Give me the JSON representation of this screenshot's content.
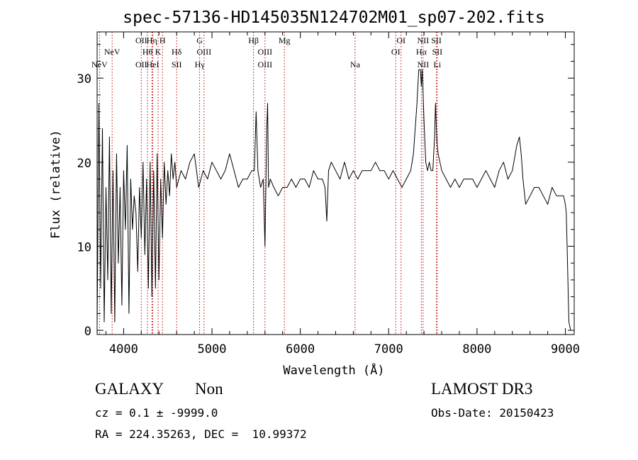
{
  "chart_data": {
    "type": "line",
    "title": "spec-57136-HD145035N124702M01_sp07-202.fits",
    "xlabel": "Wavelength (Å)",
    "ylabel": "Flux (relative)",
    "xlim": [
      3700,
      9100
    ],
    "ylim": [
      -0.5,
      35.5
    ],
    "xticks": [
      4000,
      5000,
      6000,
      7000,
      8000,
      9000
    ],
    "yticks": [
      0,
      10,
      20,
      30
    ],
    "line_color": "#000000",
    "marker_color": "#c00000",
    "series": [
      {
        "x": [
          3700,
          3720,
          3740,
          3760,
          3780,
          3800,
          3820,
          3840,
          3860,
          3880,
          3900,
          3920,
          3940,
          3960,
          3980,
          4000,
          4020,
          4040,
          4060,
          4080,
          4100,
          4120,
          4140,
          4160,
          4180,
          4200,
          4220,
          4240,
          4260,
          4280,
          4300,
          4320,
          4340,
          4360,
          4380,
          4400,
          4420,
          4440,
          4460,
          4480,
          4500,
          4520,
          4540,
          4560,
          4580,
          4600,
          4650,
          4700,
          4750,
          4800,
          4850,
          4900,
          4950,
          5000,
          5050,
          5100,
          5150,
          5200,
          5250,
          5300,
          5350,
          5400,
          5450,
          5480,
          5500,
          5520,
          5550,
          5580,
          5600,
          5620,
          5630,
          5640,
          5660,
          5700,
          5750,
          5800,
          5850,
          5900,
          5950,
          6000,
          6050,
          6100,
          6150,
          6200,
          6250,
          6280,
          6300,
          6320,
          6350,
          6400,
          6450,
          6500,
          6550,
          6600,
          6650,
          6700,
          6750,
          6800,
          6850,
          6900,
          6950,
          7000,
          7050,
          7100,
          7150,
          7200,
          7250,
          7280,
          7300,
          7320,
          7340,
          7360,
          7370,
          7380,
          7390,
          7400,
          7420,
          7440,
          7460,
          7480,
          7500,
          7510,
          7520,
          7530,
          7540,
          7550,
          7560,
          7580,
          7600,
          7650,
          7700,
          7750,
          7800,
          7850,
          7900,
          7950,
          8000,
          8050,
          8100,
          8150,
          8200,
          8250,
          8300,
          8350,
          8400,
          8450,
          8480,
          8500,
          8520,
          8550,
          8600,
          8650,
          8700,
          8750,
          8800,
          8850,
          8900,
          8950,
          8980,
          9000,
          9010,
          9020,
          9040,
          9060
        ],
        "y": [
          0.5,
          27,
          5,
          24,
          1,
          17,
          6,
          23,
          2,
          19,
          1,
          21,
          8,
          17,
          3,
          19,
          12,
          22,
          2,
          18,
          12,
          16,
          14,
          7,
          17,
          11,
          20,
          9,
          18,
          5,
          20,
          4,
          19,
          5,
          21,
          6,
          18,
          11,
          20,
          15,
          19,
          16,
          21,
          18,
          20,
          17,
          19,
          18,
          20,
          21,
          17,
          19,
          18,
          20,
          19,
          18,
          19,
          21,
          19,
          17,
          18,
          18,
          19,
          19,
          26,
          19,
          17,
          18,
          10,
          24,
          27,
          17,
          18,
          17,
          16,
          17,
          17,
          18,
          17,
          18,
          18,
          17,
          19,
          18,
          18,
          17,
          13,
          19,
          20,
          19,
          18,
          20,
          18,
          19,
          18,
          19,
          19,
          19,
          20,
          19,
          19,
          18,
          19,
          18,
          17,
          18,
          19,
          21,
          24,
          27,
          31,
          31,
          29,
          31,
          28,
          25,
          20,
          19,
          20,
          19,
          19,
          21,
          23,
          27,
          24,
          22,
          21,
          20,
          19,
          18,
          17,
          18,
          17,
          18,
          18,
          18,
          17,
          18,
          19,
          18,
          17,
          19,
          20,
          18,
          19,
          22,
          23,
          21,
          18,
          15,
          16,
          17,
          17,
          16,
          15,
          17,
          16,
          16,
          16,
          15,
          14,
          10,
          1,
          0
        ]
      }
    ],
    "lines": [
      {
        "lambda": 3727,
        "label": "NeV",
        "row": 3
      },
      {
        "lambda": 3870,
        "label": "NeV",
        "row": 2
      },
      {
        "lambda": 4200,
        "label": "OII",
        "row": 1
      },
      {
        "lambda": 4200,
        "label": "OII",
        "row": 3
      },
      {
        "lambda": 4270,
        "label": "Hθ",
        "row": 2
      },
      {
        "lambda": 4320,
        "label": "Hη",
        "row": 1
      },
      {
        "lambda": 4330,
        "label": "HeI",
        "row": 3
      },
      {
        "lambda": 4390,
        "label": "K",
        "row": 2
      },
      {
        "lambda": 4440,
        "label": "H",
        "row": 1
      },
      {
        "lambda": 4600,
        "label": "Hδ",
        "row": 2
      },
      {
        "lambda": 4600,
        "label": "SII",
        "row": 3
      },
      {
        "lambda": 4860,
        "label": "G",
        "row": 1
      },
      {
        "lambda": 4910,
        "label": "OIII",
        "row": 2
      },
      {
        "lambda": 4860,
        "label": "Hγ",
        "row": 3
      },
      {
        "lambda": 5470,
        "label": "Hβ",
        "row": 1
      },
      {
        "lambda": 5600,
        "label": "OIII",
        "row": 2
      },
      {
        "lambda": 5600,
        "label": "OIII",
        "row": 3
      },
      {
        "lambda": 5820,
        "label": "Mg",
        "row": 1
      },
      {
        "lambda": 6620,
        "label": "Na",
        "row": 3
      },
      {
        "lambda": 7140,
        "label": "OI",
        "row": 1
      },
      {
        "lambda": 7080,
        "label": "OI",
        "row": 2
      },
      {
        "lambda": 7390,
        "label": "NII",
        "row": 1
      },
      {
        "lambda": 7370,
        "label": "Hα",
        "row": 2
      },
      {
        "lambda": 7390,
        "label": "NII",
        "row": 3
      },
      {
        "lambda": 7540,
        "label": "SII",
        "row": 1
      },
      {
        "lambda": 7550,
        "label": "SII",
        "row": 2
      },
      {
        "lambda": 7550,
        "label": "Li",
        "row": 3
      }
    ],
    "grid": false,
    "legend": "none"
  },
  "info": {
    "class_label": "GALAXY",
    "subclass_label": "Non",
    "cz_text": "cz = 0.1 ± -9999.0",
    "radec_text": "RA = 224.35263, DEC =  10.99372",
    "survey_label": "LAMOST DR3",
    "obs_date_text": "Obs-Date: 20150423"
  }
}
